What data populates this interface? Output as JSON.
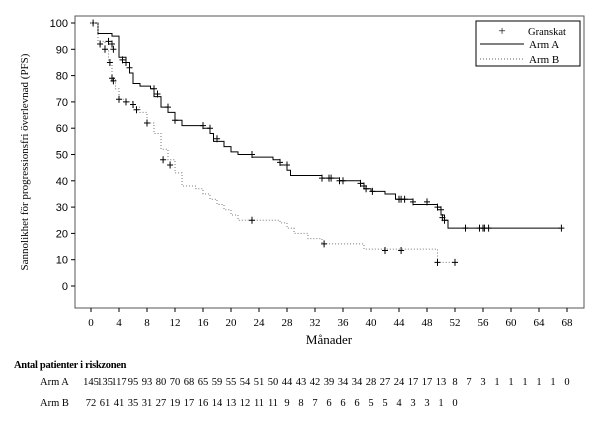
{
  "chart_data": {
    "type": "line",
    "subtype": "kaplan-meier",
    "xlabel": "Månader",
    "ylabel": "Sannolikhet för progressionsfri överlevnad (PFS)",
    "xlim": [
      -3,
      73
    ],
    "ylim": [
      -7,
      103
    ],
    "xticks": [
      0,
      4,
      8,
      12,
      16,
      20,
      24,
      28,
      32,
      36,
      40,
      44,
      48,
      52,
      56,
      60,
      64,
      68
    ],
    "yticks": [
      0,
      10,
      20,
      30,
      40,
      50,
      60,
      70,
      80,
      90,
      100
    ],
    "legend": {
      "position": "top-right",
      "entries": [
        "Granskat",
        "Arm A",
        "Arm B"
      ]
    },
    "series": [
      {
        "name": "Arm A",
        "style": "solid",
        "steps": [
          [
            0,
            100
          ],
          [
            1,
            96
          ],
          [
            3,
            95
          ],
          [
            4,
            87
          ],
          [
            5,
            85
          ],
          [
            5.5,
            81
          ],
          [
            6,
            77
          ],
          [
            7,
            76
          ],
          [
            8.5,
            75
          ],
          [
            9,
            72
          ],
          [
            10,
            68
          ],
          [
            11,
            66
          ],
          [
            12,
            63
          ],
          [
            13,
            61
          ],
          [
            16,
            60
          ],
          [
            17,
            58
          ],
          [
            17.5,
            55
          ],
          [
            19,
            53
          ],
          [
            20,
            51
          ],
          [
            21,
            50
          ],
          [
            23,
            49
          ],
          [
            26,
            48
          ],
          [
            27,
            46
          ],
          [
            28,
            44
          ],
          [
            28.5,
            42
          ],
          [
            33,
            41
          ],
          [
            35.5,
            40
          ],
          [
            38.5,
            39
          ],
          [
            39,
            37
          ],
          [
            40,
            36
          ],
          [
            42,
            35
          ],
          [
            43.5,
            33
          ],
          [
            46,
            31
          ],
          [
            49.5,
            30
          ],
          [
            50,
            27
          ],
          [
            50.5,
            25
          ],
          [
            51,
            22
          ],
          [
            67,
            22
          ]
        ],
        "censored": [
          [
            0.3,
            100
          ],
          [
            2.5,
            93
          ],
          [
            3,
            92
          ],
          [
            3.2,
            90
          ],
          [
            4.5,
            86
          ],
          [
            5,
            85
          ],
          [
            5.5,
            83
          ],
          [
            9,
            75
          ],
          [
            9.5,
            73
          ],
          [
            11,
            68
          ],
          [
            12,
            63
          ],
          [
            16,
            61
          ],
          [
            17,
            60
          ],
          [
            18,
            56
          ],
          [
            23,
            50
          ],
          [
            27,
            47
          ],
          [
            28,
            46
          ],
          [
            33,
            41
          ],
          [
            34,
            41
          ],
          [
            34.3,
            41
          ],
          [
            35.5,
            40
          ],
          [
            36,
            40
          ],
          [
            38.5,
            39
          ],
          [
            39,
            38
          ],
          [
            39.3,
            37
          ],
          [
            40.2,
            36
          ],
          [
            44,
            33
          ],
          [
            44.3,
            33
          ],
          [
            44.8,
            33
          ],
          [
            46,
            32
          ],
          [
            48,
            32
          ],
          [
            49.5,
            30
          ],
          [
            50,
            29
          ],
          [
            50.2,
            26
          ],
          [
            50.5,
            25
          ],
          [
            53.5,
            22
          ],
          [
            55.5,
            22
          ],
          [
            56,
            22
          ],
          [
            56.2,
            22
          ],
          [
            56.8,
            22
          ],
          [
            67.2,
            22
          ]
        ]
      },
      {
        "name": "Arm B",
        "style": "dotted",
        "steps": [
          [
            0,
            100
          ],
          [
            1,
            93
          ],
          [
            2,
            90
          ],
          [
            2.5,
            85
          ],
          [
            3,
            79
          ],
          [
            3.5,
            75
          ],
          [
            4,
            71
          ],
          [
            5,
            70
          ],
          [
            6,
            68
          ],
          [
            7,
            66
          ],
          [
            8,
            62
          ],
          [
            9,
            58
          ],
          [
            10,
            52
          ],
          [
            11,
            48
          ],
          [
            12,
            43
          ],
          [
            13,
            38
          ],
          [
            15,
            37
          ],
          [
            16,
            35
          ],
          [
            17,
            33
          ],
          [
            18,
            31
          ],
          [
            19,
            29
          ],
          [
            20,
            27
          ],
          [
            21,
            25
          ],
          [
            27,
            24
          ],
          [
            28,
            22
          ],
          [
            29,
            20
          ],
          [
            31,
            18
          ],
          [
            33,
            16
          ],
          [
            39,
            14
          ],
          [
            49.5,
            9
          ],
          [
            52,
            9
          ]
        ],
        "censored": [
          [
            1.3,
            92
          ],
          [
            2,
            90
          ],
          [
            2.7,
            85
          ],
          [
            3,
            79
          ],
          [
            3.2,
            78
          ],
          [
            4,
            71
          ],
          [
            5,
            70
          ],
          [
            6,
            69
          ],
          [
            6.5,
            67
          ],
          [
            8,
            62
          ],
          [
            10.3,
            48
          ],
          [
            11.3,
            46
          ],
          [
            23,
            25
          ],
          [
            33.3,
            16
          ],
          [
            42,
            13.5
          ],
          [
            44.3,
            13.5
          ],
          [
            49.5,
            9
          ],
          [
            52,
            9
          ]
        ]
      }
    ]
  },
  "risk_table": {
    "title": "Antal patienter i riskzonen",
    "rows": [
      {
        "label": "Arm A",
        "values": [
          "145",
          "135",
          "117",
          "95",
          "93",
          "80",
          "70",
          "68",
          "65",
          "59",
          "55",
          "54",
          "51",
          "50",
          "44",
          "43",
          "42",
          "39",
          "34",
          "34",
          "28",
          "27",
          "24",
          "17",
          "17",
          "13",
          "8",
          "7",
          "3",
          "1",
          "1",
          "1",
          "1",
          "1",
          "0"
        ]
      },
      {
        "label": "Arm B",
        "values": [
          "72",
          "61",
          "41",
          "35",
          "31",
          "27",
          "19",
          "17",
          "16",
          "14",
          "13",
          "12",
          "11",
          "11",
          "9",
          "8",
          "7",
          "6",
          "6",
          "6",
          "5",
          "5",
          "4",
          "3",
          "3",
          "1",
          "0"
        ]
      }
    ]
  }
}
